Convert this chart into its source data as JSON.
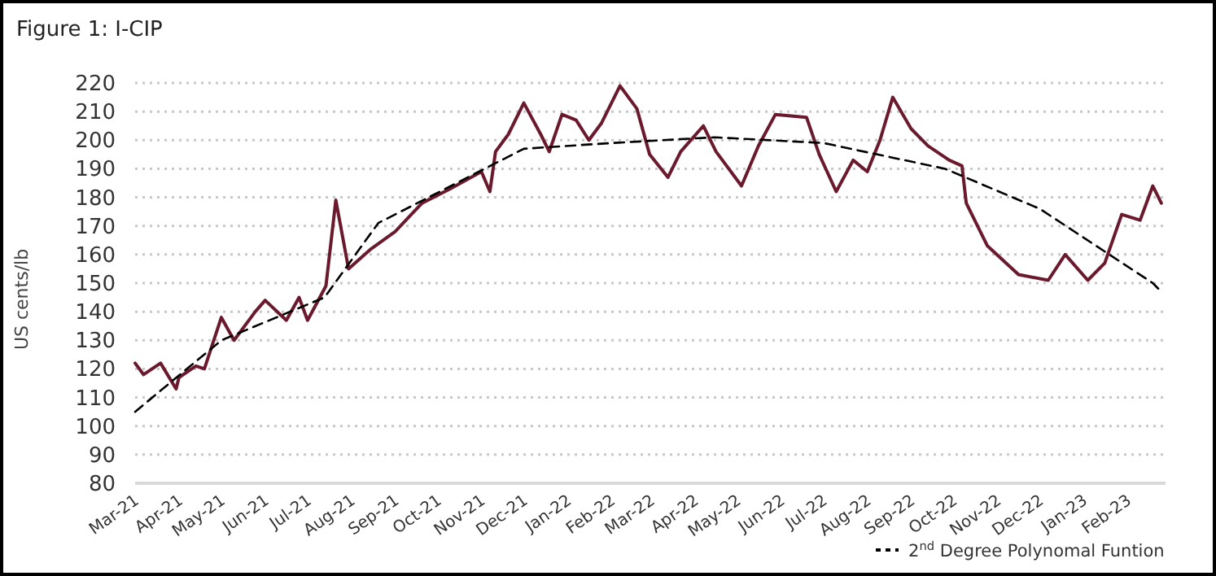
{
  "chart_data": {
    "type": "line",
    "title": "Figure 1: I-CIP",
    "ylabel": "US cents/lb",
    "x": [
      "2021-03-01",
      "2021-03-07",
      "2021-03-19",
      "2021-03-30",
      "2021-04-01",
      "2021-04-13",
      "2021-04-19",
      "2021-05-01",
      "2021-05-10",
      "2021-05-25",
      "2021-06-01",
      "2021-06-16",
      "2021-06-25",
      "2021-07-01",
      "2021-07-14",
      "2021-07-21",
      "2021-07-30",
      "2021-08-15",
      "2021-09-01",
      "2021-09-20",
      "2021-10-10",
      "2021-11-01",
      "2021-11-07",
      "2021-11-11",
      "2021-11-20",
      "2021-12-01",
      "2021-12-13",
      "2021-12-19",
      "2021-12-28",
      "2022-01-07",
      "2022-01-16",
      "2022-01-25",
      "2022-02-07",
      "2022-02-19",
      "2022-02-28",
      "2022-03-13",
      "2022-03-22",
      "2022-04-07",
      "2022-04-16",
      "2022-05-04",
      "2022-05-16",
      "2022-05-28",
      "2022-06-19",
      "2022-06-28",
      "2022-07-10",
      "2022-07-22",
      "2022-08-01",
      "2022-08-10",
      "2022-08-19",
      "2022-09-01",
      "2022-09-13",
      "2022-09-28",
      "2022-10-07",
      "2022-10-10",
      "2022-10-25",
      "2022-11-16",
      "2022-12-07",
      "2022-12-19",
      "2023-01-04",
      "2023-01-16",
      "2023-01-28",
      "2023-02-10",
      "2023-02-19",
      "2023-02-25"
    ],
    "series": [
      {
        "color": "#6b1a2e",
        "values": [
          122,
          118,
          122,
          113,
          117,
          121,
          120,
          138,
          130,
          140,
          144,
          137,
          145,
          137,
          149,
          179,
          155,
          162,
          168,
          178,
          183,
          189,
          182,
          196,
          202,
          213,
          202,
          196,
          209,
          207,
          200,
          206,
          219,
          211,
          195,
          187,
          196,
          205,
          196,
          184,
          198,
          209,
          208,
          195,
          182,
          193,
          189,
          200,
          215,
          204,
          198,
          193,
          191,
          178,
          163,
          153,
          151,
          160,
          151,
          157,
          174,
          172,
          184,
          178
        ]
      },
      {
        "name": "2$^{nd}$ Degree Polynomal Funtion",
        "type": "line",
        "line_style": "dashed",
        "color": "#000000",
        "x": [
          "2021-03-01",
          "2021-05-01",
          "2021-07-13",
          "2021-08-20",
          "2021-12-01",
          "2022-02-01",
          "2022-04-15",
          "2022-07-01",
          "2022-09-25",
          "2022-12-01",
          "2023-02-19",
          "2023-02-25"
        ],
        "values": [
          105,
          130,
          145,
          171,
          197,
          199,
          201,
          199,
          190,
          176,
          150,
          147
        ]
      }
    ],
    "xlim": [
      "2021-03-01",
      "2023-02-28"
    ],
    "xticks": [
      {
        "value": "2021-03-01",
        "label": "Mar-21"
      },
      {
        "value": "2021-04-01",
        "label": "Apr-21"
      },
      {
        "value": "2021-05-01",
        "label": "May-21"
      },
      {
        "value": "2021-06-01",
        "label": "Jun-21"
      },
      {
        "value": "2021-07-01",
        "label": "Jul-21"
      },
      {
        "value": "2021-08-01",
        "label": "Aug-21"
      },
      {
        "value": "2021-09-01",
        "label": "Sep-21"
      },
      {
        "value": "2021-10-01",
        "label": "Oct-21"
      },
      {
        "value": "2021-11-01",
        "label": "Nov-21"
      },
      {
        "value": "2021-12-01",
        "label": "Dec-21"
      },
      {
        "value": "2022-01-01",
        "label": "Jan-22"
      },
      {
        "value": "2022-02-01",
        "label": "Feb-22"
      },
      {
        "value": "2022-03-01",
        "label": "Mar-22"
      },
      {
        "value": "2022-04-01",
        "label": "Apr-22"
      },
      {
        "value": "2022-05-01",
        "label": "May-22"
      },
      {
        "value": "2022-06-01",
        "label": "Jun-22"
      },
      {
        "value": "2022-07-01",
        "label": "Jul-22"
      },
      {
        "value": "2022-08-01",
        "label": "Aug-22"
      },
      {
        "value": "2022-09-01",
        "label": "Sep-22"
      },
      {
        "value": "2022-10-01",
        "label": "Oct-22"
      },
      {
        "value": "2022-11-01",
        "label": "Nov-22"
      },
      {
        "value": "2022-12-01",
        "label": "Dec-22"
      },
      {
        "value": "2023-01-01",
        "label": "Jan-23"
      },
      {
        "value": "2023-02-01",
        "label": "Feb-23"
      }
    ],
    "ylim": [
      80,
      220
    ],
    "yticks": [
      80,
      90,
      100,
      110,
      120,
      130,
      140,
      150,
      160,
      170,
      180,
      190,
      200,
      210,
      220
    ],
    "grid": "y",
    "legend": "bottom right",
    "marker": "none",
    "line_style": "solid"
  }
}
